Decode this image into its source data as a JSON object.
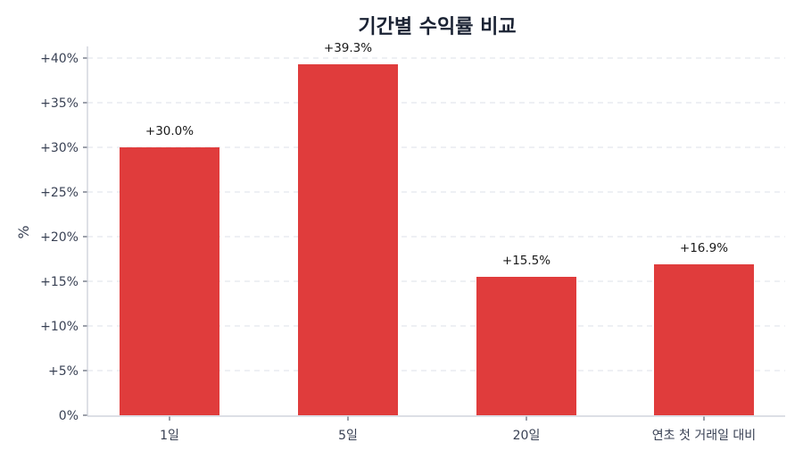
{
  "chart_data": {
    "type": "bar",
    "title": "기간별 수익률 비교",
    "xlabel": "",
    "ylabel": "%",
    "categories": [
      "1일",
      "5일",
      "20일",
      "연초 첫 거래일 대비"
    ],
    "values": [
      30.0,
      39.3,
      15.5,
      16.9
    ],
    "value_labels": [
      "+30.0%",
      "+39.3%",
      "+15.5%",
      "+16.9%"
    ],
    "ylim": [
      0,
      40
    ],
    "yticks": [
      0,
      5,
      10,
      15,
      20,
      25,
      30,
      35,
      40
    ],
    "ytick_labels": [
      "0%",
      "+5%",
      "+10%",
      "+15%",
      "+20%",
      "+25%",
      "+30%",
      "+35%",
      "+40%"
    ],
    "grid": true,
    "grid_style": "dashed horizontal",
    "legend": null,
    "colors": {
      "bar": "#e03c3c",
      "title": "#1a2233",
      "text": "#3a4255",
      "grid": "#dde1e8",
      "axis": "#c8ccd6"
    }
  }
}
